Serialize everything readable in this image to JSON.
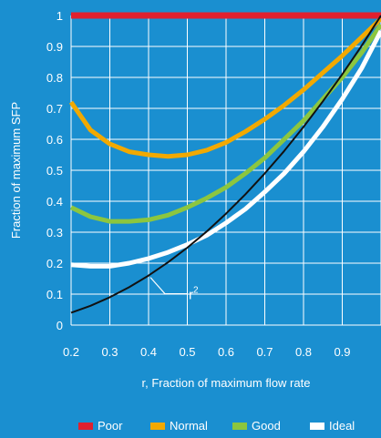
{
  "chart_data": {
    "type": "line",
    "title": "",
    "xlabel": "r, Fraction of maximum flow rate",
    "ylabel": "Fraction of maximum SFP",
    "xlim": [
      0.2,
      1.0
    ],
    "ylim": [
      0,
      1
    ],
    "x_ticks": [
      "0.2",
      "0.3",
      "0.4",
      "0.5",
      "0.6",
      "0.7",
      "0.8",
      "0.9"
    ],
    "y_ticks": [
      "0",
      "0.1",
      "0.2",
      "0.3",
      "0.4",
      "0.5",
      "0.6",
      "0.7",
      "0.8",
      "0.9",
      "1"
    ],
    "grid": true,
    "legend_position": "bottom",
    "annotation": {
      "text": "r",
      "superscript": "2",
      "x": 0.42,
      "y": 0.176
    },
    "series": [
      {
        "name": "Poor",
        "color": "#e0202e",
        "x": [
          0.2,
          1.0
        ],
        "y": [
          1.0,
          1.0
        ]
      },
      {
        "name": "Normal",
        "color": "#f2a900",
        "x": [
          0.2,
          0.25,
          0.3,
          0.35,
          0.4,
          0.45,
          0.5,
          0.55,
          0.6,
          0.65,
          0.7,
          0.75,
          0.8,
          0.85,
          0.9,
          0.95,
          1.0
        ],
        "y": [
          0.72,
          0.63,
          0.585,
          0.56,
          0.55,
          0.545,
          0.55,
          0.565,
          0.59,
          0.625,
          0.665,
          0.71,
          0.76,
          0.815,
          0.87,
          0.93,
          0.99
        ]
      },
      {
        "name": "Good",
        "color": "#8cc63f",
        "x": [
          0.2,
          0.25,
          0.3,
          0.35,
          0.4,
          0.45,
          0.5,
          0.55,
          0.6,
          0.65,
          0.7,
          0.75,
          0.8,
          0.85,
          0.9,
          0.95,
          1.0
        ],
        "y": [
          0.38,
          0.35,
          0.335,
          0.335,
          0.34,
          0.355,
          0.38,
          0.41,
          0.445,
          0.49,
          0.54,
          0.6,
          0.66,
          0.73,
          0.8,
          0.88,
          0.97
        ]
      },
      {
        "name": "Ideal",
        "color": "#ffffff",
        "x": [
          0.2,
          0.25,
          0.3,
          0.35,
          0.4,
          0.45,
          0.5,
          0.55,
          0.6,
          0.65,
          0.7,
          0.75,
          0.8,
          0.85,
          0.9,
          0.95,
          1.0
        ],
        "y": [
          0.195,
          0.19,
          0.19,
          0.2,
          0.215,
          0.235,
          0.26,
          0.29,
          0.33,
          0.375,
          0.43,
          0.49,
          0.56,
          0.64,
          0.73,
          0.83,
          0.95
        ]
      },
      {
        "name": "r2",
        "color": "#111111",
        "in_legend": false,
        "x": [
          0.2,
          0.25,
          0.3,
          0.35,
          0.4,
          0.45,
          0.5,
          0.55,
          0.6,
          0.65,
          0.7,
          0.75,
          0.8,
          0.85,
          0.9,
          0.95,
          1.0
        ],
        "y": [
          0.04,
          0.0625,
          0.09,
          0.1225,
          0.16,
          0.2025,
          0.25,
          0.3025,
          0.36,
          0.4225,
          0.49,
          0.5625,
          0.64,
          0.7225,
          0.81,
          0.9025,
          1.0
        ]
      }
    ]
  }
}
